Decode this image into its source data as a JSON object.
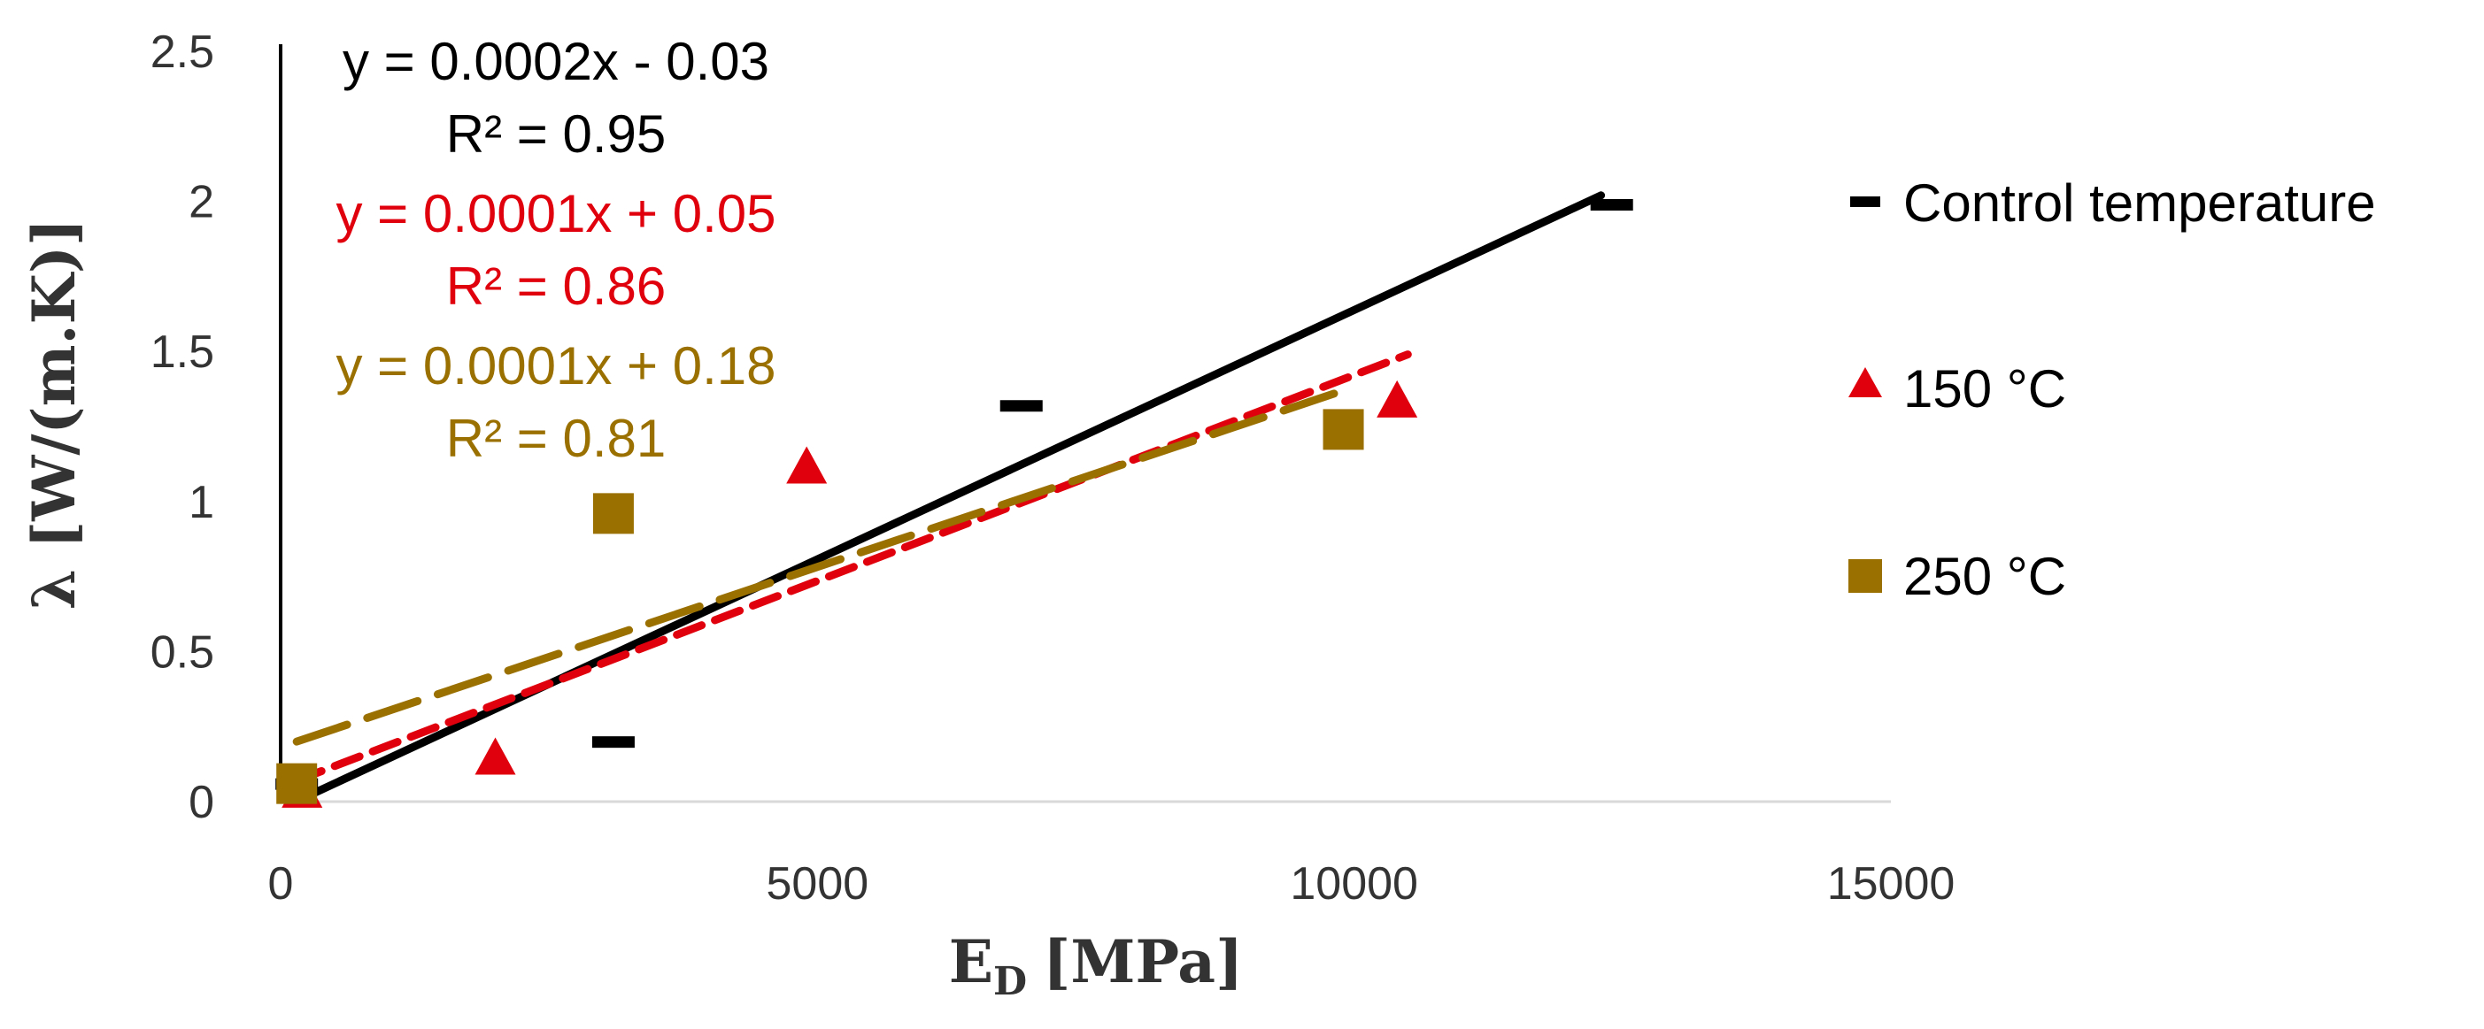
{
  "chart_data": {
    "type": "scatter",
    "xlabel": "E",
    "xlabel_sub": "D",
    "xlabel_unit": "[MPa]",
    "ylabel": "λ [W/(m.K)]",
    "xlim": [
      0,
      15000
    ],
    "ylim": [
      0,
      2.5
    ],
    "x_ticks": [
      0,
      5000,
      10000,
      15000
    ],
    "y_ticks": [
      0,
      0.5,
      1,
      1.5,
      2,
      2.5
    ],
    "x_tick_labels": [
      "0",
      "5000",
      "10000",
      "15000"
    ],
    "y_tick_labels": [
      "0",
      "0.5",
      "1",
      "1.5",
      "2",
      "2.5"
    ],
    "legend_position": "right",
    "series": [
      {
        "name": "Control temperature",
        "color": "#000000",
        "marker": "dash",
        "points": [
          [
            150,
            0.06
          ],
          [
            3100,
            0.2
          ],
          [
            6900,
            1.32
          ],
          [
            12400,
            1.99
          ]
        ],
        "trendline": {
          "x": [
            200,
            12300
          ],
          "y": [
            0.01,
            2.02
          ],
          "style": "solid"
        },
        "equation": "y = 0.0002x - 0.03",
        "r2": "R² = 0.95"
      },
      {
        "name": "150 °C",
        "color": "#e0000d",
        "marker": "triangle",
        "points": [
          [
            200,
            0.03
          ],
          [
            2000,
            0.14
          ],
          [
            4900,
            1.11
          ],
          [
            10400,
            1.33
          ]
        ],
        "trendline": {
          "x": [
            150,
            10500
          ],
          "y": [
            0.07,
            1.49
          ],
          "style": "dashed"
        },
        "equation": "y = 0.0001x + 0.05",
        "r2": "R² = 0.86"
      },
      {
        "name": "250 °C",
        "color": "#9a7000",
        "marker": "square",
        "points": [
          [
            150,
            0.06
          ],
          [
            3100,
            0.96
          ],
          [
            9900,
            1.24
          ]
        ],
        "trendline": {
          "x": [
            150,
            9900
          ],
          "y": [
            0.2,
            1.37
          ],
          "style": "longdash"
        },
        "equation": "y = 0.0001x + 0.18",
        "r2": "R² = 0.81"
      }
    ]
  }
}
